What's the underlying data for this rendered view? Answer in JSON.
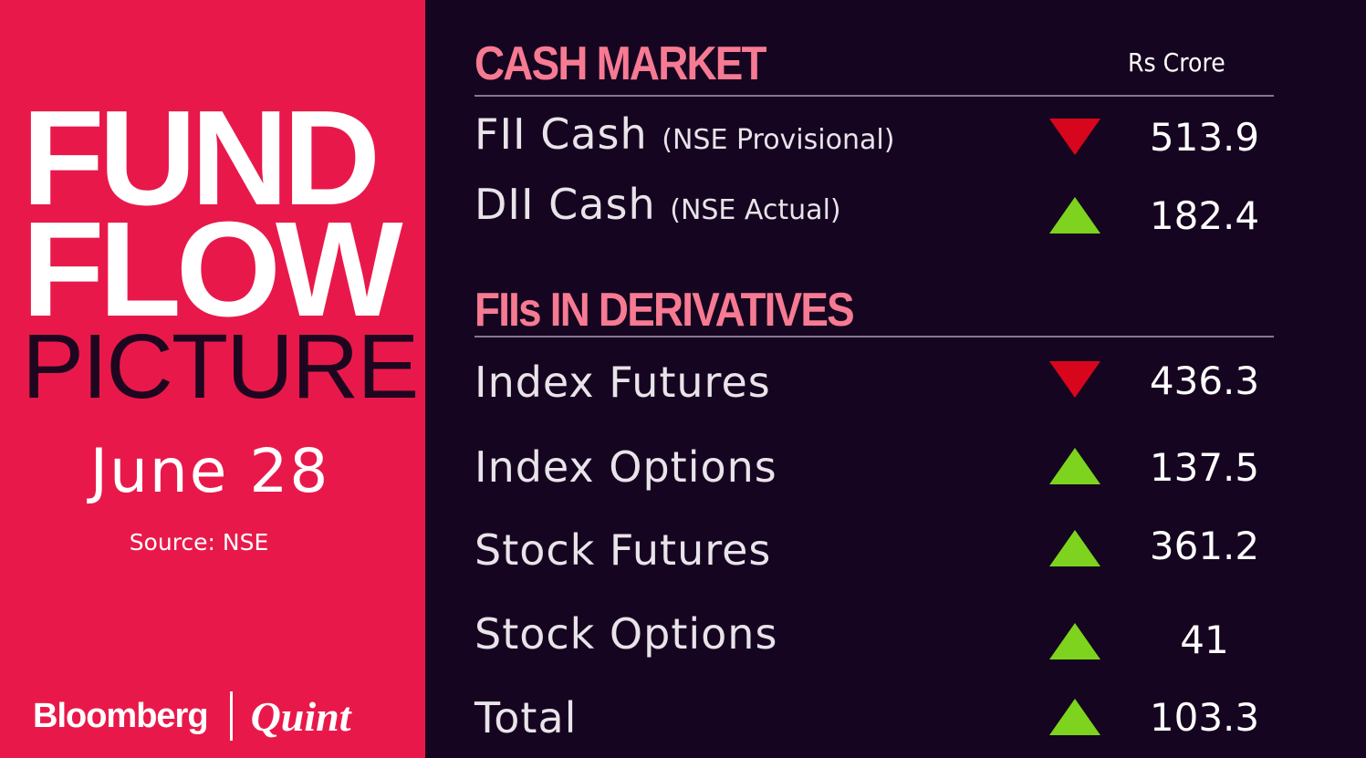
{
  "left": {
    "title1": "FUND",
    "title2": "FLOW",
    "title3": "PICTURE",
    "date": "June 28",
    "source": "Source: NSE",
    "logo": {
      "brand1": "Bloomberg",
      "brand2": "Quint"
    }
  },
  "colors": {
    "panel": "#e8194a",
    "background": "#160520",
    "heading": "#f77a93",
    "up": "#7dd31e",
    "down": "#d8061c"
  },
  "cash": {
    "heading": "CASH MARKET",
    "unit": "Rs Crore",
    "rows": [
      {
        "label": "FII Cash",
        "note": "(NSE Provisional)",
        "direction": "down",
        "value": "513.9"
      },
      {
        "label": "DII Cash",
        "note": "(NSE Actual)",
        "direction": "up",
        "value": "182.4"
      }
    ]
  },
  "derivatives": {
    "heading": "FIIs IN DERIVATIVES",
    "rows": [
      {
        "label": "Index Futures",
        "direction": "down",
        "value": "436.3"
      },
      {
        "label": "Index Options",
        "direction": "up",
        "value": "137.5"
      },
      {
        "label": "Stock Futures",
        "direction": "up",
        "value": "361.2"
      },
      {
        "label": "Stock Options",
        "direction": "up",
        "value": "41"
      },
      {
        "label": "Total",
        "direction": "up",
        "value": "103.3"
      }
    ]
  }
}
